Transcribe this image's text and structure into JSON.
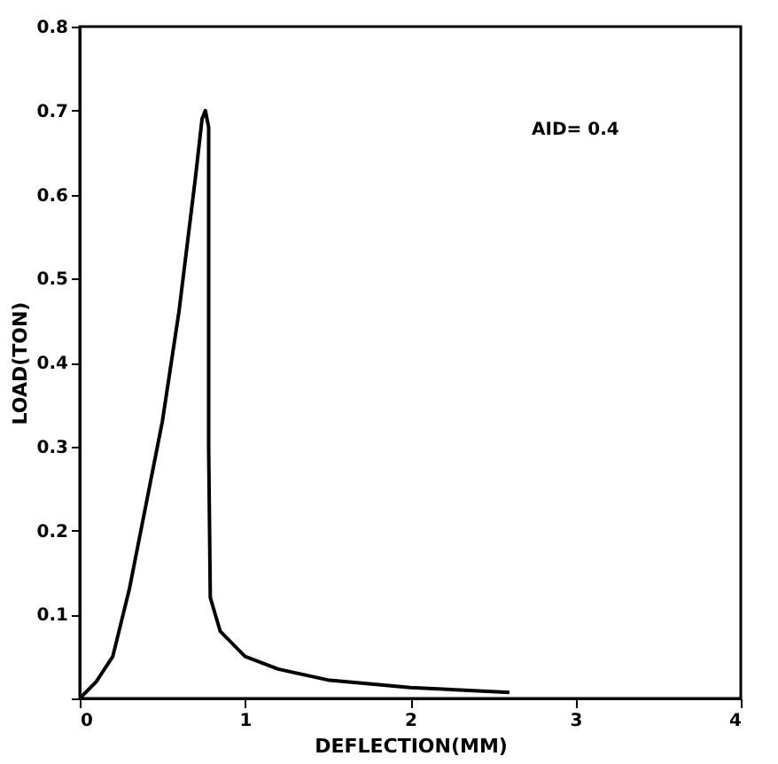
{
  "chart_data": {
    "type": "line",
    "xlabel": "DEFLECTION(MM)",
    "ylabel": "LOAD(TON)",
    "annotations": [
      "AID= 0.4"
    ],
    "x": [
      0,
      0.1,
      0.2,
      0.3,
      0.4,
      0.5,
      0.6,
      0.7,
      0.74,
      0.76,
      0.78,
      0.78,
      0.79,
      0.85,
      1.0,
      1.2,
      1.5,
      2.0,
      2.3,
      2.6
    ],
    "series": [
      {
        "color": "#000000",
        "values": [
          0,
          0.02,
          0.05,
          0.13,
          0.23,
          0.33,
          0.46,
          0.62,
          0.69,
          0.7,
          0.68,
          0.3,
          0.12,
          0.08,
          0.05,
          0.035,
          0.022,
          0.013,
          0.01,
          0.007
        ]
      }
    ],
    "xlim": [
      0,
      4
    ],
    "xticks": [
      0,
      1,
      2,
      3,
      4
    ],
    "ylim": [
      0,
      0.8
    ],
    "yticks": [
      {
        "value": 0,
        "label": null
      },
      0.1,
      0.2,
      0.3,
      0.4,
      0.5,
      0.6,
      0.7,
      0.8
    ],
    "grid": false,
    "marker": "none",
    "line_style": "solid"
  }
}
